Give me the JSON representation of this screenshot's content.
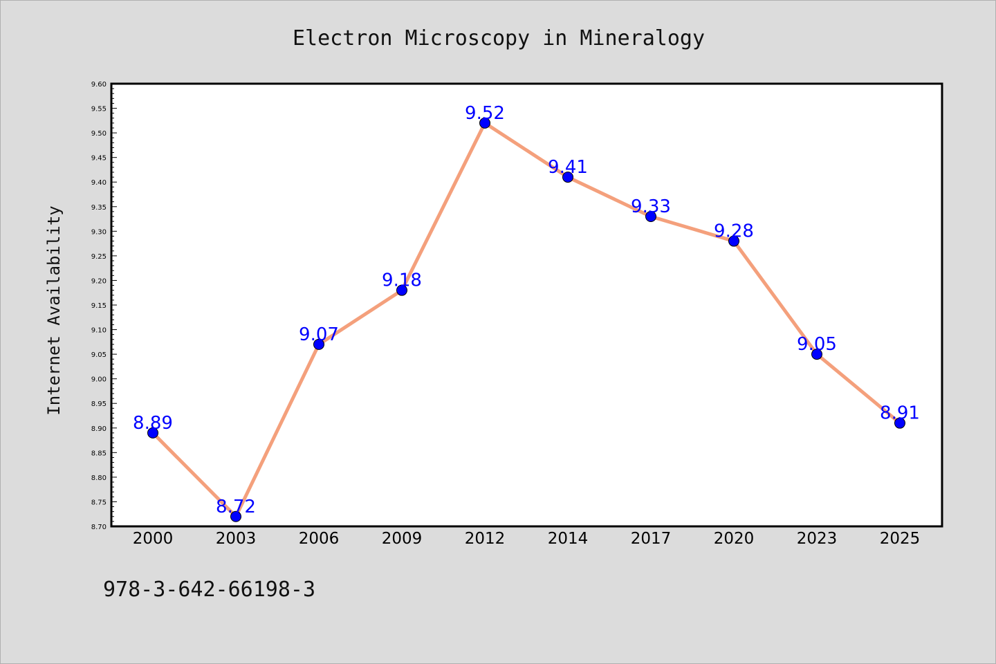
{
  "chart_data": {
    "type": "line",
    "title": "Electron Microscopy in Mineralogy",
    "xlabel": "",
    "ylabel": "Internet Availability",
    "categories": [
      "2000",
      "2003",
      "2006",
      "2009",
      "2012",
      "2014",
      "2017",
      "2020",
      "2023",
      "2025"
    ],
    "series": [
      {
        "values": [
          8.89,
          8.72,
          9.07,
          9.18,
          9.52,
          9.41,
          9.33,
          9.28,
          9.05,
          8.91
        ]
      }
    ],
    "data_labels": [
      "8.89",
      "8.72",
      "9.07",
      "9.18",
      "9.52",
      "9.41",
      "9.33",
      "9.28",
      "9.05",
      "8.91"
    ],
    "ylim": [
      8.7,
      9.6
    ],
    "yticks": [
      "8.70",
      "8.75",
      "8.80",
      "8.85",
      "8.90",
      "8.95",
      "9.00",
      "9.05",
      "9.10",
      "9.15",
      "9.20",
      "9.25",
      "9.30",
      "9.35",
      "9.40",
      "9.45",
      "9.50",
      "9.55",
      "9.60"
    ],
    "grid": false,
    "legend": "none",
    "colors": {
      "line": "#f4a07c",
      "marker": "#0000ff",
      "label": "#0000ff",
      "background": "#dcdcdc",
      "plot_background": "#ffffff"
    }
  },
  "footer": {
    "code": "978-3-642-66198-3"
  }
}
